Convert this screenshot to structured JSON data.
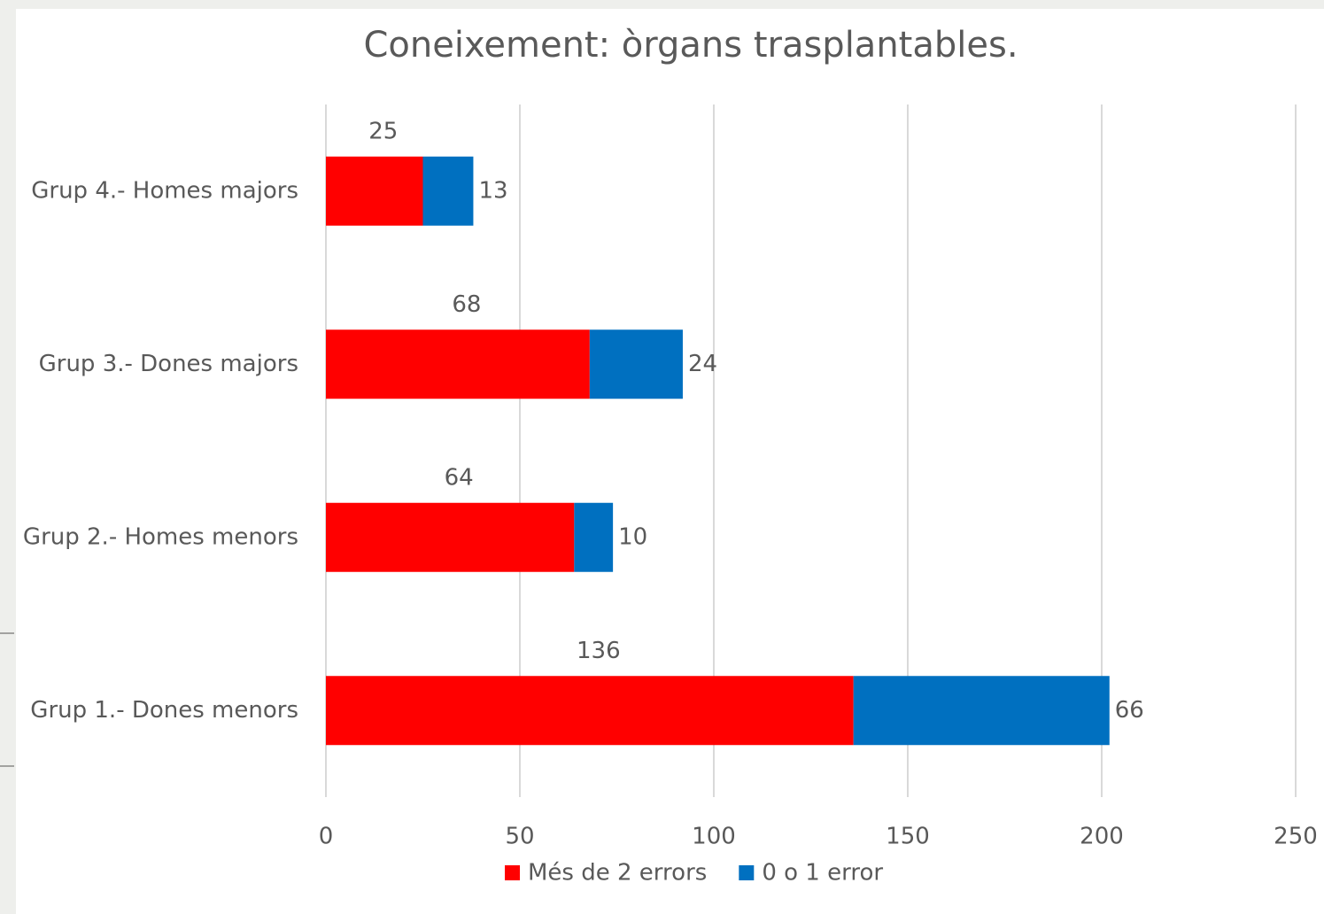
{
  "chart_data": {
    "type": "stacked_barh",
    "title": "Coneixement: òrgans trasplantables.",
    "categories": [
      "Grup 4.- Homes majors",
      "Grup 3.- Dones majors",
      "Grup 2.- Homes menors",
      "Grup 1.- Dones menors"
    ],
    "series": [
      {
        "name": "Més de 2 errors",
        "color": "#ff0000",
        "values": [
          25,
          68,
          64,
          136
        ]
      },
      {
        "name": "0 o 1 error",
        "color": "#0070c0",
        "values": [
          13,
          24,
          10,
          66
        ]
      }
    ],
    "xlim": [
      0,
      250
    ],
    "xticks": [
      0,
      50,
      100,
      150,
      200,
      250
    ],
    "grid": true,
    "legend": "bottom"
  }
}
